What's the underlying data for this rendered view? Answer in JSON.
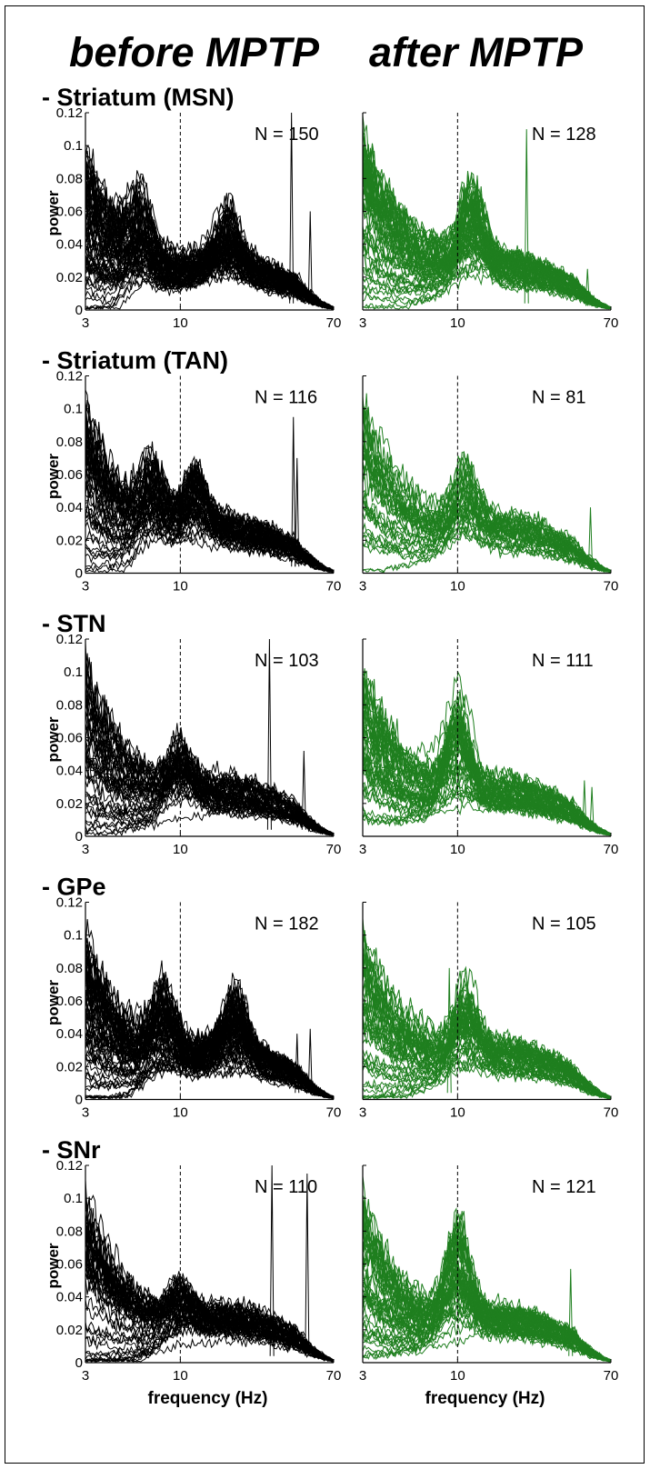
{
  "figure": {
    "column_titles": [
      "before MPTP",
      "after MPTP"
    ]
  },
  "chart_data": [
    {
      "type": "line",
      "region": "- Striatum (MSN)",
      "condition": "before MPTP",
      "n_label": "N = 150",
      "n": 150,
      "xlabel": "",
      "ylabel": "power",
      "x_scale": "log",
      "xlim": [
        3,
        70
      ],
      "ylim": [
        0,
        0.12
      ],
      "xticks": [
        "3",
        "10",
        "70"
      ],
      "yticks": [
        "0",
        "0.02",
        "0.04",
        "0.06",
        "0.08",
        "0.1",
        "0.12"
      ],
      "reference_line_x": 10,
      "line_color": "#000000",
      "baseline_low": 0.012,
      "baseline_high": 0.115,
      "peaks": [
        {
          "x": 6,
          "height": 0.08
        },
        {
          "x": 18,
          "height": 0.06
        }
      ],
      "spikes": [
        {
          "x": 41,
          "height": 0.12
        },
        {
          "x": 52,
          "height": 0.06
        }
      ]
    },
    {
      "type": "line",
      "region": "",
      "condition": "after MPTP",
      "n_label": "N = 128",
      "n": 128,
      "xlabel": "",
      "ylabel": "",
      "x_scale": "log",
      "xlim": [
        3,
        70
      ],
      "ylim": [
        0,
        0.12
      ],
      "xticks": [
        "3",
        "10",
        "70"
      ],
      "yticks": [],
      "reference_line_x": 10,
      "line_color": "#1f7f1f",
      "baseline_low": 0.015,
      "baseline_high": 0.12,
      "peaks": [
        {
          "x": 12,
          "height": 0.09
        }
      ],
      "spikes": [
        {
          "x": 24,
          "height": 0.11
        },
        {
          "x": 52,
          "height": 0.025
        }
      ]
    },
    {
      "type": "line",
      "region": "- Striatum (TAN)",
      "condition": "before MPTP",
      "n_label": "N = 116",
      "n": 116,
      "xlabel": "",
      "ylabel": "power",
      "x_scale": "log",
      "xlim": [
        3,
        70
      ],
      "ylim": [
        0,
        0.12
      ],
      "xticks": [
        "3",
        "10",
        "70"
      ],
      "yticks": [
        "0",
        "0.02",
        "0.04",
        "0.06",
        "0.08",
        "0.1",
        "0.12"
      ],
      "reference_line_x": 10,
      "line_color": "#000000",
      "baseline_low": 0.01,
      "baseline_high": 0.12,
      "peaks": [
        {
          "x": 7,
          "height": 0.077
        },
        {
          "x": 12,
          "height": 0.072
        }
      ],
      "spikes": [
        {
          "x": 42,
          "height": 0.095
        },
        {
          "x": 44,
          "height": 0.07
        }
      ]
    },
    {
      "type": "line",
      "region": "",
      "condition": "after MPTP",
      "n_label": "N = 81",
      "n": 81,
      "xlabel": "",
      "ylabel": "",
      "x_scale": "log",
      "xlim": [
        3,
        70
      ],
      "ylim": [
        0,
        0.12
      ],
      "xticks": [
        "3",
        "10",
        "70"
      ],
      "yticks": [],
      "reference_line_x": 10,
      "line_color": "#1f7f1f",
      "baseline_low": 0.015,
      "baseline_high": 0.12,
      "peaks": [
        {
          "x": 11,
          "height": 0.075
        }
      ],
      "spikes": [
        {
          "x": 54,
          "height": 0.04
        }
      ]
    },
    {
      "type": "line",
      "region": "- STN",
      "condition": "before MPTP",
      "n_label": "N = 103",
      "n": 103,
      "xlabel": "",
      "ylabel": "power",
      "x_scale": "log",
      "xlim": [
        3,
        70
      ],
      "ylim": [
        0,
        0.12
      ],
      "xticks": [
        "3",
        "10",
        "70"
      ],
      "yticks": [
        "0",
        "0.02",
        "0.04",
        "0.06",
        "0.08",
        "0.1",
        "0.12"
      ],
      "reference_line_x": 10,
      "line_color": "#000000",
      "baseline_low": 0.01,
      "baseline_high": 0.12,
      "peaks": [
        {
          "x": 10,
          "height": 0.065
        }
      ],
      "spikes": [
        {
          "x": 31,
          "height": 0.12
        },
        {
          "x": 48,
          "height": 0.052
        }
      ]
    },
    {
      "type": "line",
      "region": "",
      "condition": "after MPTP",
      "n_label": "N = 111",
      "n": 111,
      "xlabel": "",
      "ylabel": "",
      "x_scale": "log",
      "xlim": [
        3,
        70
      ],
      "ylim": [
        0,
        0.12
      ],
      "xticks": [
        "3",
        "10",
        "70"
      ],
      "yticks": [],
      "reference_line_x": 10,
      "line_color": "#1f7f1f",
      "baseline_low": 0.02,
      "baseline_high": 0.12,
      "peaks": [
        {
          "x": 10,
          "height": 0.105
        }
      ],
      "spikes": [
        {
          "x": 50,
          "height": 0.034
        },
        {
          "x": 55,
          "height": 0.03
        }
      ]
    },
    {
      "type": "line",
      "region": "- GPe",
      "condition": "before MPTP",
      "n_label": "N = 182",
      "n": 182,
      "xlabel": "",
      "ylabel": "power",
      "x_scale": "log",
      "xlim": [
        3,
        70
      ],
      "ylim": [
        0,
        0.12
      ],
      "xticks": [
        "3",
        "10",
        "70"
      ],
      "yticks": [
        "0",
        "0.02",
        "0.04",
        "0.06",
        "0.08",
        "0.1",
        "0.12"
      ],
      "reference_line_x": 10,
      "line_color": "#000000",
      "baseline_low": 0.008,
      "baseline_high": 0.12,
      "peaks": [
        {
          "x": 8,
          "height": 0.075
        },
        {
          "x": 20,
          "height": 0.063
        }
      ],
      "spikes": [
        {
          "x": 44,
          "height": 0.04
        },
        {
          "x": 52,
          "height": 0.043
        }
      ]
    },
    {
      "type": "line",
      "region": "",
      "condition": "after MPTP",
      "n_label": "N = 105",
      "n": 105,
      "xlabel": "",
      "ylabel": "",
      "x_scale": "log",
      "xlim": [
        3,
        70
      ],
      "ylim": [
        0,
        0.12
      ],
      "xticks": [
        "3",
        "10",
        "70"
      ],
      "yticks": [],
      "reference_line_x": 10,
      "line_color": "#1f7f1f",
      "baseline_low": 0.015,
      "baseline_high": 0.12,
      "peaks": [
        {
          "x": 11,
          "height": 0.083
        }
      ],
      "spikes": [
        {
          "x": 9,
          "height": 0.08
        }
      ]
    },
    {
      "type": "line",
      "region": "- SNr",
      "condition": "before MPTP",
      "n_label": "N = 110",
      "n": 110,
      "xlabel": "frequency (Hz)",
      "ylabel": "power",
      "x_scale": "log",
      "xlim": [
        3,
        70
      ],
      "ylim": [
        0,
        0.12
      ],
      "xticks": [
        "3",
        "10",
        "70"
      ],
      "yticks": [
        "0",
        "0.02",
        "0.04",
        "0.06",
        "0.08",
        "0.1",
        "0.12"
      ],
      "reference_line_x": 10,
      "line_color": "#000000",
      "baseline_low": 0.008,
      "baseline_high": 0.12,
      "peaks": [
        {
          "x": 10,
          "height": 0.045
        }
      ],
      "spikes": [
        {
          "x": 32,
          "height": 0.12
        },
        {
          "x": 50,
          "height": 0.115
        }
      ]
    },
    {
      "type": "line",
      "region": "",
      "condition": "after MPTP",
      "n_label": "N = 121",
      "n": 121,
      "xlabel": "frequency (Hz)",
      "ylabel": "",
      "x_scale": "log",
      "xlim": [
        3,
        70
      ],
      "ylim": [
        0,
        0.12
      ],
      "xticks": [
        "3",
        "10",
        "70"
      ],
      "yticks": [],
      "reference_line_x": 10,
      "line_color": "#1f7f1f",
      "baseline_low": 0.015,
      "baseline_high": 0.12,
      "peaks": [
        {
          "x": 10,
          "height": 0.11
        }
      ],
      "spikes": [
        {
          "x": 42,
          "height": 0.057
        }
      ]
    }
  ]
}
